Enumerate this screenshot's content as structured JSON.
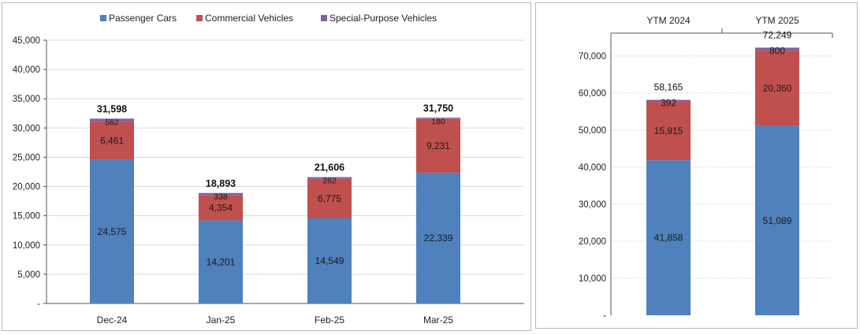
{
  "colors": {
    "passenger": "#4f81bd",
    "commercial": "#c0504d",
    "special": "#8064a2"
  },
  "chart_data": [
    {
      "type": "bar",
      "stacked": true,
      "categories": [
        "Dec-24",
        "Jan-25",
        "Feb-25",
        "Mar-25"
      ],
      "series": [
        {
          "name": "Passenger Cars",
          "values": [
            24575,
            14201,
            14549,
            22339
          ],
          "labels": [
            "24,575",
            "14,201",
            "14,549",
            "22,339"
          ]
        },
        {
          "name": "Commercial Vehicles",
          "values": [
            6461,
            4354,
            6775,
            9231
          ],
          "labels": [
            "6,461",
            "4,354",
            "6,775",
            "9,231"
          ]
        },
        {
          "name": "Special-Purpose Vehicles",
          "values": [
            562,
            338,
            282,
            180
          ],
          "labels": [
            "562",
            "338",
            "282",
            "180"
          ]
        }
      ],
      "totals": [
        "31,598",
        "18,893",
        "21,606",
        "31,750"
      ],
      "ylim": [
        0,
        45000
      ],
      "ytick_labels": [
        "-",
        "5,000",
        "10,000",
        "15,000",
        "20,000",
        "25,000",
        "30,000",
        "35,000",
        "40,000",
        "45,000"
      ],
      "legend_position": "top-center",
      "grid": true
    },
    {
      "type": "bar",
      "stacked": true,
      "categories": [
        "YTM 2024",
        "YTM 2025"
      ],
      "series": [
        {
          "name": "Passenger Cars",
          "values": [
            41858,
            51089
          ],
          "labels": [
            "41,858",
            "51,089"
          ]
        },
        {
          "name": "Commercial Vehicles",
          "values": [
            15915,
            20360
          ],
          "labels": [
            "15,915",
            "20,360"
          ]
        },
        {
          "name": "Special-Purpose Vehicles",
          "values": [
            392,
            800
          ],
          "labels": [
            "392",
            "800"
          ]
        }
      ],
      "totals": [
        "58,165",
        "72,249"
      ],
      "ylim": [
        0,
        75000
      ],
      "ytick_labels": [
        "-",
        "10,000",
        "20,000",
        "30,000",
        "40,000",
        "50,000",
        "60,000",
        "70,000"
      ],
      "category_axis_position": "top",
      "grid": true
    }
  ]
}
